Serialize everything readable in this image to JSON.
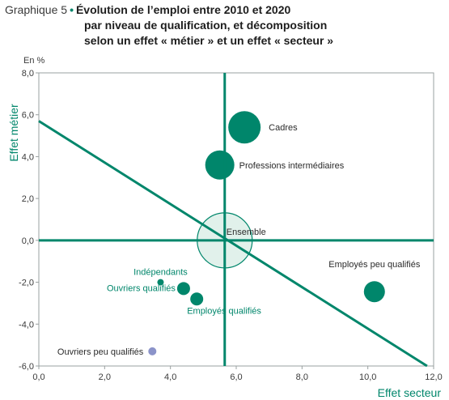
{
  "header": {
    "prefix": "Graphique 5",
    "line1": "Évolution de l’emploi entre 2010 et 2020",
    "line2": "par niveau de qualification, et décomposition",
    "line3": "selon un effet « métier » et un effet « secteur »"
  },
  "colors": {
    "accent": "#00866b",
    "bubble": "#00866b",
    "ensemble_fill": "#dcefe8",
    "special": "#8b93c9",
    "frame": "#9aa0a0"
  },
  "chart_data": {
    "type": "scatter",
    "unit": "En %",
    "xlabel": "Effet secteur",
    "ylabel": "Effet métier",
    "xlim": [
      0,
      12
    ],
    "ylim": [
      -6,
      8
    ],
    "xticks": [
      0,
      2,
      4,
      6,
      8,
      10,
      12
    ],
    "yticks": [
      -6,
      -4,
      -2,
      0,
      2,
      4,
      6,
      8
    ],
    "xtick_labels": [
      "0,0",
      "2,0",
      "4,0",
      "6,0",
      "8,0",
      "10,0",
      "12,0"
    ],
    "ytick_labels": [
      "-6,0",
      "-4,0",
      "-2,0",
      "0,0",
      "2,0",
      "4,0",
      "6,0",
      "8,0"
    ],
    "reference_lines": {
      "vertical_x": 5.65,
      "horizontal_y": 0
    },
    "trend_line": {
      "x": [
        0,
        11.8
      ],
      "y": [
        5.7,
        -6.0
      ]
    },
    "points": [
      {
        "label": "Cadres",
        "x": 6.25,
        "y": 5.4,
        "size": 20
      },
      {
        "label": "Professions intermédiaires",
        "x": 5.5,
        "y": 3.6,
        "size": 18
      },
      {
        "label": "Ensemble",
        "x": 5.65,
        "y": 0.0,
        "size": 34,
        "style": "outline"
      },
      {
        "label": "Employés peu qualifiés",
        "x": 10.2,
        "y": -2.45,
        "size": 13
      },
      {
        "label": "Indépendants",
        "x": 3.7,
        "y": -2.0,
        "size": 4
      },
      {
        "label": "Ouvriers qualifiés",
        "x": 4.4,
        "y": -2.3,
        "size": 8
      },
      {
        "label": "Employés qualifiés",
        "x": 4.8,
        "y": -2.8,
        "size": 8
      },
      {
        "label": "Ouvriers peu qualifiés",
        "x": 3.45,
        "y": -5.3,
        "size": 5,
        "style": "special"
      }
    ]
  }
}
